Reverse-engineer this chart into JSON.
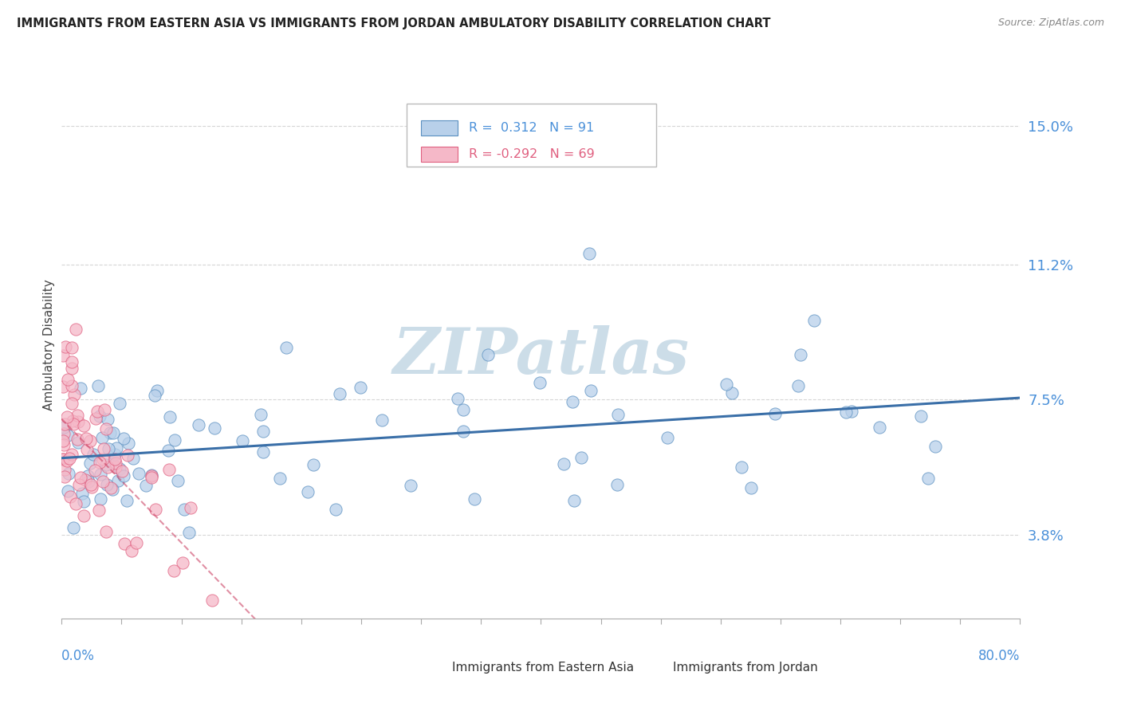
{
  "title": "IMMIGRANTS FROM EASTERN ASIA VS IMMIGRANTS FROM JORDAN AMBULATORY DISABILITY CORRELATION CHART",
  "source": "Source: ZipAtlas.com",
  "ylabel": "Ambulatory Disability",
  "yticks": [
    0.038,
    0.075,
    0.112,
    0.15
  ],
  "ytick_labels": [
    "3.8%",
    "7.5%",
    "11.2%",
    "15.0%"
  ],
  "xlim": [
    0.0,
    0.8
  ],
  "ylim": [
    0.015,
    0.165
  ],
  "r_blue": "0.312",
  "n_blue": "91",
  "r_pink": "-0.292",
  "n_pink": "69",
  "blue_fill": "#b8d0ea",
  "pink_fill": "#f5b8c8",
  "blue_edge": "#5a8fc0",
  "pink_edge": "#e06080",
  "blue_line": "#3a6fa8",
  "pink_line": "#cc4466",
  "watermark": "ZIPatlas",
  "watermark_color": "#ccdde8",
  "legend_blue_label": "Immigrants from Eastern Asia",
  "legend_pink_label": "Immigrants from Jordan",
  "grid_color": "#cccccc",
  "title_color": "#222222",
  "source_color": "#888888",
  "axis_label_color": "#4a90d9",
  "tick_label_color": "#4a90d9"
}
